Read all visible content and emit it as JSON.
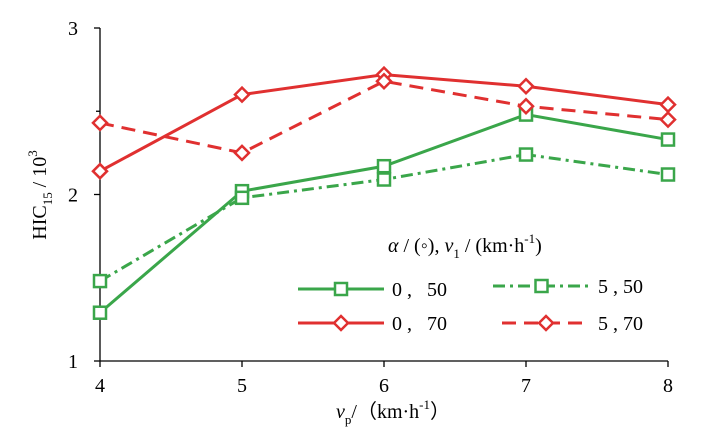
{
  "chart_data": {
    "type": "line",
    "x": [
      4,
      5,
      6,
      7,
      8
    ],
    "xlim": [
      4,
      8
    ],
    "ylim": [
      1,
      3
    ],
    "x_ticks": [
      "4",
      "5",
      "6",
      "7",
      "8"
    ],
    "y_ticks": [
      "1",
      "2",
      "3"
    ],
    "ylabel": {
      "main": "HIC",
      "sub": "15",
      "sep": " / 10",
      "sup": "3"
    },
    "xlabel": {
      "main": "v",
      "sub": "p",
      "unit": "/（km·h",
      "unit_sup": "-1",
      "close": "）"
    },
    "legend_title": {
      "alpha": "α",
      "mid": " / (◦), ",
      "v": "v",
      "vsub": "1",
      "unit": " / (km·h",
      "unit_sup": "-1",
      "close": ")"
    },
    "legend_labels": [
      "0 ,   50",
      "5 , 50",
      "0 ,   70",
      "5 , 70"
    ],
    "grid": false,
    "series": [
      {
        "name": "0 , 50",
        "color": "#3aa64a",
        "dash": "solid",
        "marker": "square",
        "values": [
          1.29,
          2.02,
          2.17,
          2.48,
          2.33
        ]
      },
      {
        "name": "5 , 50",
        "color": "#3aa64a",
        "dash": "dashdot",
        "marker": "square",
        "values": [
          1.48,
          1.98,
          2.09,
          2.24,
          2.12
        ]
      },
      {
        "name": "0 , 70",
        "color": "#e03030",
        "dash": "solid",
        "marker": "diamond",
        "values": [
          2.14,
          2.6,
          2.72,
          2.65,
          2.54
        ]
      },
      {
        "name": "5 , 70",
        "color": "#e03030",
        "dash": "dashed",
        "marker": "diamond",
        "values": [
          2.43,
          2.25,
          2.68,
          2.53,
          2.45
        ]
      }
    ]
  }
}
